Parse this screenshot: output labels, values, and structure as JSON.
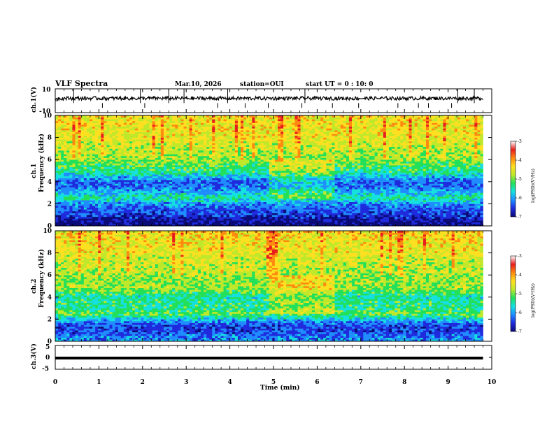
{
  "header": {
    "title": "VLF Spectra",
    "date": "Mar.10, 2026",
    "station": "station=OUI",
    "start": "start  UT =   0 : 10: 0"
  },
  "colors": {
    "colormap": [
      "#0a0a78",
      "#1e2adc",
      "#1f8cff",
      "#15e0e0",
      "#22e05a",
      "#bfe82a",
      "#ffe020",
      "#ff8a10",
      "#e81e1e",
      "#ffffff"
    ],
    "trace": "#000000",
    "axis": "#000000"
  },
  "chart_data": [
    {
      "type": "line",
      "name": "ch1-waveform",
      "ylabel": "ch.1(V)",
      "ylim": [
        -10,
        10
      ],
      "yticks": [
        "10",
        "-10"
      ],
      "xlim": [
        0,
        10
      ],
      "baseline": 2,
      "noise_amplitude": 1.5,
      "spike_times_min": [
        0.42,
        1.08,
        1.95,
        2.05,
        2.6,
        2.95,
        3.72,
        3.95,
        4.35,
        4.88,
        5.65,
        5.72,
        6.35,
        6.95,
        7.85,
        8.32,
        8.55,
        9.08,
        9.22,
        9.6
      ]
    },
    {
      "type": "heatmap",
      "name": "ch1-spectrogram",
      "ylabel_lines": [
        "ch.1",
        "Frequency (kHz)"
      ],
      "ylim": [
        0,
        10
      ],
      "yticks": [
        "0",
        "2",
        "4",
        "6",
        "8",
        "10"
      ],
      "xlim": [
        0,
        9.8
      ],
      "colorbar": {
        "label": "log(PSD)(V²/Hz)",
        "range": [
          -7,
          -3
        ],
        "ticks": [
          "-3",
          "-4",
          "-5",
          "-6",
          "-7"
        ]
      },
      "approx_log_psd_profile_by_khz": [
        [
          0,
          -6.9
        ],
        [
          0.5,
          -6.7
        ],
        [
          1,
          -6.3
        ],
        [
          1.5,
          -6.1
        ],
        [
          2,
          -5.9
        ],
        [
          2.5,
          -5.2
        ],
        [
          3,
          -5.6
        ],
        [
          3.5,
          -6.0
        ],
        [
          4,
          -6.1
        ],
        [
          4.5,
          -5.6
        ],
        [
          5,
          -5.1
        ],
        [
          5.5,
          -4.9
        ],
        [
          6,
          -4.7
        ],
        [
          7,
          -4.5
        ],
        [
          8,
          -4.3
        ],
        [
          9,
          -4.2
        ],
        [
          10,
          -4.2
        ]
      ],
      "segments_min": [
        [
          0,
          4.9
        ],
        [
          4.9,
          6.4
        ],
        [
          6.4,
          9.8
        ]
      ]
    },
    {
      "type": "heatmap",
      "name": "ch2-spectrogram",
      "ylabel_lines": [
        "ch.2",
        "Frequency (kHz)"
      ],
      "ylim": [
        0,
        10
      ],
      "yticks": [
        "0",
        "2",
        "4",
        "6",
        "8",
        "10"
      ],
      "xlim": [
        0,
        9.8
      ],
      "colorbar": {
        "label": "log(PSD)(V²/Hz)",
        "range": [
          -7,
          -3
        ],
        "ticks": [
          "-3",
          "-4",
          "-5",
          "-6",
          "-7"
        ]
      },
      "approx_log_psd_profile_by_khz": [
        [
          0,
          -5.8
        ],
        [
          0.5,
          -6.0
        ],
        [
          1,
          -6.3
        ],
        [
          1.5,
          -6.2
        ],
        [
          2,
          -5.6
        ],
        [
          2.5,
          -4.8
        ],
        [
          3,
          -5.2
        ],
        [
          3.5,
          -5.1
        ],
        [
          4,
          -5.3
        ],
        [
          4.5,
          -4.9
        ],
        [
          5,
          -4.6
        ],
        [
          5.5,
          -4.7
        ],
        [
          6,
          -4.6
        ],
        [
          7,
          -4.5
        ],
        [
          8,
          -4.3
        ],
        [
          9,
          -4.2
        ],
        [
          10,
          -4.1
        ]
      ],
      "segments_min": [
        [
          0,
          4.9
        ],
        [
          4.9,
          6.4
        ],
        [
          6.4,
          9.8
        ]
      ]
    },
    {
      "type": "line",
      "name": "ch3-waveform",
      "ylabel": "ch.3(V)",
      "ylim": [
        -5,
        5
      ],
      "yticks": [
        "5",
        "0",
        "-5"
      ],
      "xlim": [
        0,
        10
      ],
      "baseline": -0.3
    }
  ],
  "xaxis": {
    "label": "Time (min)",
    "range": [
      0,
      10
    ],
    "ticks": [
      "0",
      "1",
      "2",
      "3",
      "4",
      "5",
      "6",
      "7",
      "8",
      "9",
      "10"
    ]
  }
}
